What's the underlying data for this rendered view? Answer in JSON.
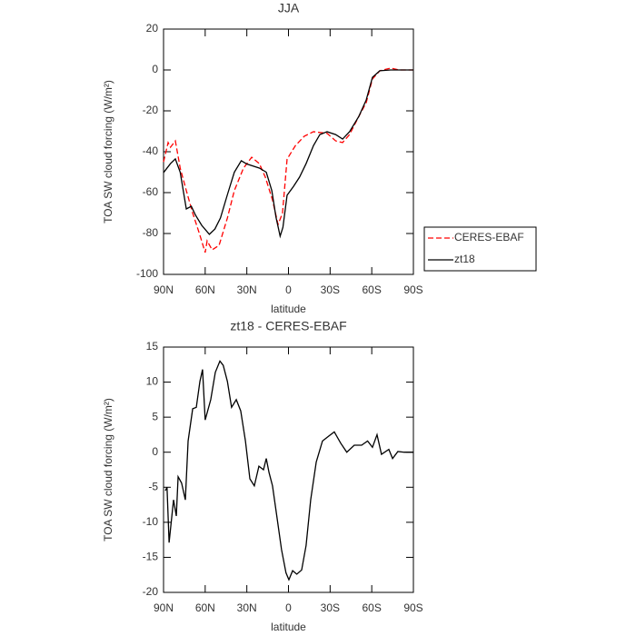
{
  "chart_data": [
    {
      "type": "line",
      "title": "JJA",
      "xlabel": "latitude",
      "ylabel": "TOA SW cloud forcing (W/m²)",
      "xlim": [
        90,
        -90
      ],
      "ylim": [
        -100,
        20
      ],
      "xticks": [
        {
          "value": 90,
          "label": "90N"
        },
        {
          "value": 60,
          "label": "60N"
        },
        {
          "value": 30,
          "label": "30N"
        },
        0,
        {
          "value": -30,
          "label": "30S"
        },
        {
          "value": -60,
          "label": "60S"
        },
        {
          "value": -90,
          "label": "90S"
        }
      ],
      "yticks": [
        -100,
        -80,
        -60,
        -40,
        -20,
        0,
        20
      ],
      "legend": "right",
      "series": [
        {
          "name": "CERES-EBAF",
          "color": "#ff0000",
          "linestyle": "dashed",
          "x": [
            90,
            86.7,
            85,
            81.5,
            78,
            73.6,
            69,
            64,
            60,
            58.6,
            55,
            50,
            44,
            39,
            32.4,
            26.5,
            21,
            16.7,
            11.5,
            7.5,
            4.3,
            1,
            -5,
            -11.4,
            -18,
            -27.8,
            -34,
            -39,
            -44,
            -50.7,
            -56,
            -60.5,
            -65.8,
            -73.6,
            -80,
            -90
          ],
          "values": [
            -45,
            -35.5,
            -37.8,
            -34.7,
            -48,
            -59,
            -70,
            -80.4,
            -89.3,
            -83.6,
            -88,
            -85.8,
            -72.4,
            -59,
            -48,
            -42.7,
            -45.8,
            -52.4,
            -63.6,
            -75.6,
            -70,
            -43.6,
            -37,
            -32.4,
            -30.2,
            -31,
            -34.7,
            -35.5,
            -31.6,
            -22.7,
            -16,
            -4.4,
            -0.4,
            0.9,
            0,
            0
          ]
        },
        {
          "name": "zt18",
          "color": "#000000",
          "linestyle": "solid",
          "x": [
            90,
            85,
            81.5,
            78,
            73.6,
            70,
            67,
            62.5,
            57,
            53,
            49,
            44,
            39,
            34,
            30,
            21,
            16,
            12,
            9,
            6,
            4,
            1,
            -3.6,
            -8,
            -12.7,
            -18,
            -22.6,
            -27.8,
            -34,
            -39,
            -44,
            -50.7,
            -56,
            -60.5,
            -65.8,
            -73.6,
            -90
          ],
          "values": [
            -50.2,
            -45.8,
            -43.5,
            -50,
            -68,
            -66.7,
            -71,
            -76,
            -80.4,
            -77.8,
            -72.4,
            -61,
            -50,
            -44.4,
            -46,
            -48,
            -50,
            -59,
            -72,
            -81.3,
            -77,
            -61.3,
            -57,
            -52.4,
            -45.8,
            -37,
            -31.6,
            -30.2,
            -31.6,
            -33.8,
            -30.2,
            -22.7,
            -14.7,
            -3.6,
            -0.4,
            0,
            0
          ]
        }
      ]
    },
    {
      "type": "line",
      "title": "zt18 - CERES-EBAF",
      "xlabel": "latitude",
      "ylabel": "TOA SW cloud forcing (W/m²)",
      "xlim": [
        90,
        -90
      ],
      "ylim": [
        -20,
        15
      ],
      "xticks": [
        {
          "value": 90,
          "label": "90N"
        },
        {
          "value": 60,
          "label": "60N"
        },
        {
          "value": 30,
          "label": "30N"
        },
        0,
        {
          "value": -30,
          "label": "30S"
        },
        {
          "value": -60,
          "label": "60S"
        },
        {
          "value": -90,
          "label": "90S"
        }
      ],
      "yticks": [
        -20,
        -15,
        -10,
        -5,
        0,
        5,
        10,
        15
      ],
      "series": [
        {
          "color": "#000000",
          "linestyle": "solid",
          "x": [
            88.7,
            87.5,
            86,
            82.8,
            80.8,
            79.5,
            77,
            74.3,
            72.3,
            69,
            66.4,
            63.8,
            61.9,
            60,
            56,
            52.7,
            49.4,
            47,
            44,
            41,
            37.6,
            34.4,
            31,
            27.8,
            24.6,
            21.3,
            18,
            16,
            14,
            11.5,
            8.2,
            5,
            1.8,
            -0.3,
            -3,
            -6,
            -9.5,
            -12.7,
            -16,
            -20,
            -24.5,
            -29,
            -33,
            -37.6,
            -42,
            -47.4,
            -52.7,
            -57,
            -60.5,
            -63.8,
            -67,
            -72.3,
            -75,
            -78.8,
            -83.4,
            -90
          ],
          "values": [
            -5.5,
            -5,
            -12.9,
            -6.8,
            -9.1,
            -3.5,
            -4.4,
            -6.8,
            1.6,
            6.2,
            6.4,
            10.1,
            11.8,
            4.6,
            7.5,
            11.4,
            13,
            12.4,
            10.1,
            6.4,
            7.5,
            5.9,
            1.6,
            -3.8,
            -4.8,
            -2,
            -2.5,
            -0.9,
            -2.9,
            -4.8,
            -9.4,
            -13.9,
            -17.2,
            -18.2,
            -16.9,
            -17.4,
            -16.8,
            -13.3,
            -6.8,
            -1.4,
            1.6,
            2.3,
            2.9,
            1.3,
            0,
            1,
            1,
            1.6,
            0.7,
            2.5,
            -0.3,
            0.4,
            -0.9,
            0.1,
            0,
            0
          ]
        }
      ]
    }
  ]
}
